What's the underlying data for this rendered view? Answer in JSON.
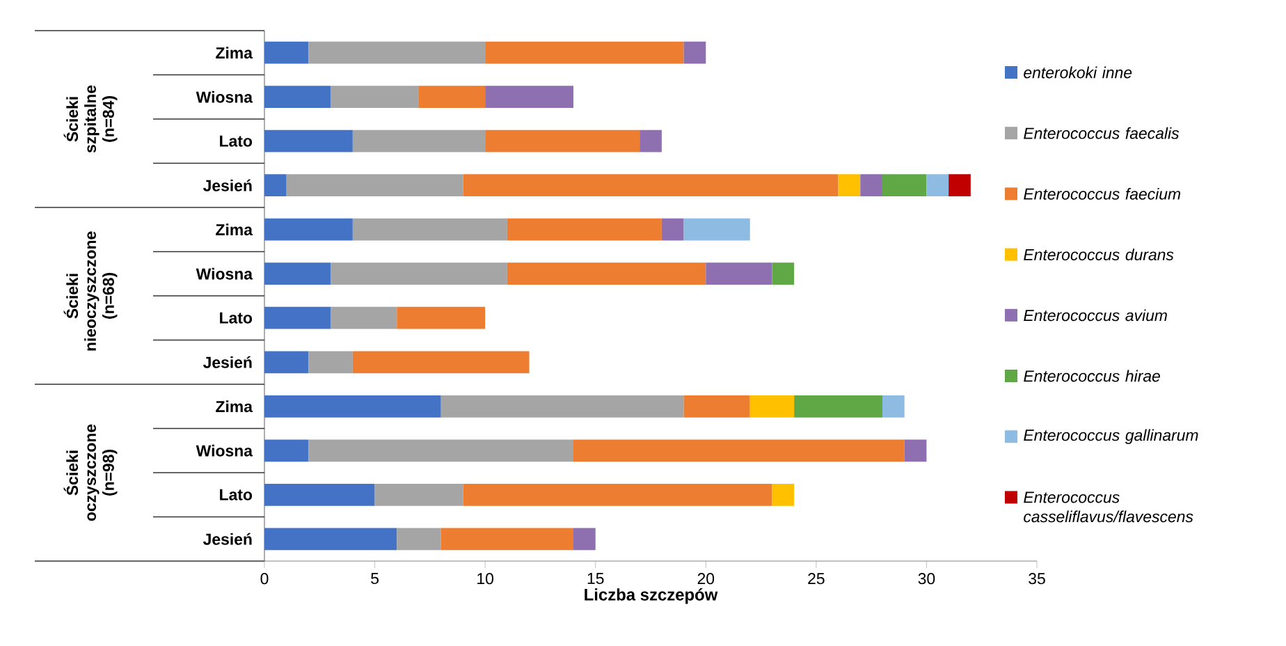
{
  "chart_data": {
    "type": "bar",
    "orientation": "horizontal",
    "stacked": true,
    "categories": [
      "Zima",
      "Wiosna",
      "Lato",
      "Jesień",
      "Zima",
      "Wiosna",
      "Lato",
      "Jesień",
      "Zima",
      "Wiosna",
      "Lato",
      "Jesień"
    ],
    "series": [
      {
        "name": "enterokoki inne",
        "color": "#4472c4",
        "values": [
          2,
          3,
          4,
          1,
          4,
          3,
          3,
          2,
          8,
          2,
          5,
          6
        ]
      },
      {
        "name": "Enterococcus faecalis",
        "color": "#a5a5a5",
        "values": [
          8,
          4,
          6,
          8,
          7,
          8,
          3,
          2,
          11,
          12,
          4,
          2
        ]
      },
      {
        "name": "Enterococcus faecium",
        "color": "#ed7d31",
        "values": [
          9,
          3,
          7,
          17,
          7,
          9,
          4,
          8,
          3,
          15,
          14,
          6
        ]
      },
      {
        "name": "Enterococcus durans",
        "color": "#ffc000",
        "values": [
          null,
          null,
          null,
          1,
          null,
          null,
          null,
          null,
          2,
          null,
          1,
          null
        ]
      },
      {
        "name": "Enterococcus avium",
        "color": "#8e6fb0",
        "values": [
          1,
          4,
          1,
          1,
          1,
          3,
          null,
          null,
          null,
          1,
          null,
          1
        ]
      },
      {
        "name": "Enterococcus hirae",
        "color": "#5fa845",
        "values": [
          null,
          null,
          null,
          2,
          null,
          1,
          null,
          null,
          4,
          null,
          null,
          null
        ]
      },
      {
        "name": "Enterococcus gallinarum",
        "color": "#8dbbe2",
        "values": [
          null,
          null,
          null,
          1,
          3,
          null,
          null,
          null,
          1,
          null,
          null,
          null
        ]
      },
      {
        "name": "Enterococcus casseliflavus/flavescens",
        "color": "#c00000",
        "values": [
          null,
          null,
          null,
          1,
          null,
          null,
          null,
          null,
          null,
          null,
          null,
          null
        ]
      }
    ],
    "xlim": [
      0,
      35
    ],
    "xticks": [
      0,
      5,
      10,
      15,
      20,
      25,
      30,
      35
    ],
    "xlabel": "Liczba szczepów",
    "annotations": [
      "Ścieki szpitalne (n=84)",
      "Ścieki nieoczyszczone (n=68)",
      "Ścieki oczyszczone (n=98)"
    ],
    "legend": "right",
    "grid": false
  }
}
